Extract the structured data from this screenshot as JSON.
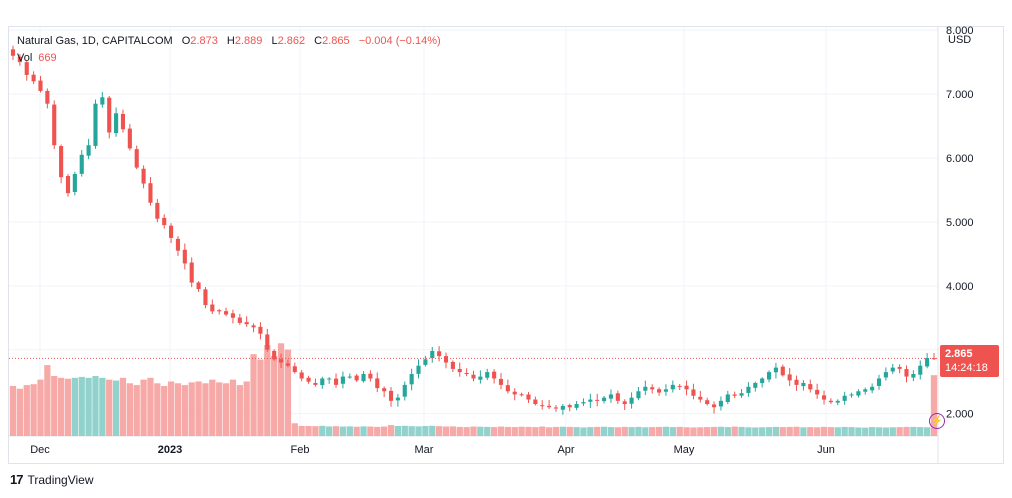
{
  "header": {
    "symbol": "Natural Gas, 1D, CAPITALCOM",
    "o_label": "O",
    "o_value": "2.873",
    "h_label": "H",
    "h_value": "2.889",
    "l_label": "L",
    "l_value": "2.862",
    "c_label": "C",
    "c_value": "2.865",
    "change": "−0.004 (−0.14%)",
    "vol_label": "Vol",
    "vol_value": "669"
  },
  "currency": "USD",
  "last_price": "2.865",
  "countdown": "14:24:18",
  "branding": {
    "logo_mark": "17",
    "name": "TradingView"
  },
  "icons": [
    "lightning-icon",
    "tradingview-logo-icon"
  ],
  "colors": {
    "up": "#26a69a",
    "down": "#ef5350",
    "vol_up": "#92d2cc",
    "vol_down": "#f7a9a7",
    "last_price_line": "#ef5350"
  },
  "chart_data": {
    "type": "candlestick",
    "title": "Natural Gas, 1D, CAPITALCOM",
    "y_axis": {
      "side": "right",
      "range": [
        1.65,
        8.05
      ],
      "ticks": [
        "2.000",
        "3.000",
        "4.000",
        "5.000",
        "6.000",
        "7.000",
        "8.000"
      ]
    },
    "x_axis": {
      "labels": [
        "Dec",
        "2023",
        "Feb",
        "Mar",
        "Apr",
        "May",
        "Jun"
      ]
    },
    "grid": true,
    "close_series": [
      7.6,
      7.5,
      7.3,
      7.2,
      7.05,
      6.85,
      6.2,
      5.7,
      5.45,
      5.75,
      6.05,
      6.2,
      6.85,
      6.95,
      6.4,
      6.7,
      6.45,
      6.15,
      5.85,
      5.6,
      5.3,
      5.05,
      4.95,
      4.75,
      4.55,
      4.35,
      4.05,
      3.95,
      3.7,
      3.6,
      3.6,
      3.55,
      3.5,
      3.42,
      3.4,
      3.35,
      3.25,
      3.0,
      2.85,
      2.8,
      2.75,
      2.65,
      2.55,
      2.5,
      2.45,
      2.55,
      2.55,
      2.45,
      2.58,
      2.58,
      2.52,
      2.62,
      2.55,
      2.4,
      2.35,
      2.2,
      2.25,
      2.45,
      2.62,
      2.75,
      2.85,
      2.98,
      2.9,
      2.8,
      2.7,
      2.65,
      2.62,
      2.55,
      2.58,
      2.65,
      2.55,
      2.45,
      2.35,
      2.3,
      2.3,
      2.22,
      2.15,
      2.12,
      2.1,
      2.08,
      2.12,
      2.1,
      2.15,
      2.18,
      2.22,
      2.2,
      2.25,
      2.3,
      2.2,
      2.15,
      2.25,
      2.35,
      2.42,
      2.38,
      2.33,
      2.38,
      2.45,
      2.42,
      2.38,
      2.28,
      2.22,
      2.15,
      2.1,
      2.2,
      2.3,
      2.28,
      2.32,
      2.42,
      2.48,
      2.55,
      2.65,
      2.72,
      2.6,
      2.52,
      2.45,
      2.48,
      2.38,
      2.3,
      2.22,
      2.18,
      2.2,
      2.28,
      2.3,
      2.35,
      2.38,
      2.42,
      2.55,
      2.65,
      2.72,
      2.7,
      2.58,
      2.62,
      2.75,
      2.87,
      2.865
    ],
    "volume_series": [
      550,
      520,
      560,
      570,
      620,
      780,
      660,
      640,
      630,
      640,
      650,
      640,
      660,
      640,
      620,
      610,
      640,
      580,
      560,
      620,
      640,
      580,
      550,
      600,
      580,
      560,
      590,
      600,
      580,
      620,
      590,
      580,
      620,
      560,
      600,
      900,
      840,
      1000,
      880,
      1020,
      950,
      140,
      110,
      110,
      108,
      112,
      105,
      108,
      104,
      106,
      102,
      106,
      104,
      100,
      104,
      120,
      110,
      112,
      108,
      106,
      110,
      112,
      108,
      104,
      106,
      100,
      98,
      104,
      102,
      100,
      98,
      104,
      100,
      98,
      102,
      100,
      98,
      104,
      96,
      100,
      102,
      100,
      98,
      94,
      98,
      100,
      102,
      98,
      96,
      100,
      98,
      100,
      96,
      98,
      100,
      102,
      98,
      100,
      96,
      94,
      96,
      98,
      100,
      102,
      98,
      104,
      100,
      96,
      94,
      96,
      98,
      100,
      98,
      100,
      102,
      96,
      98,
      96,
      100,
      98,
      96,
      100,
      98,
      94,
      92,
      98,
      96,
      94,
      96,
      98,
      100,
      100,
      98,
      96,
      669
    ]
  }
}
